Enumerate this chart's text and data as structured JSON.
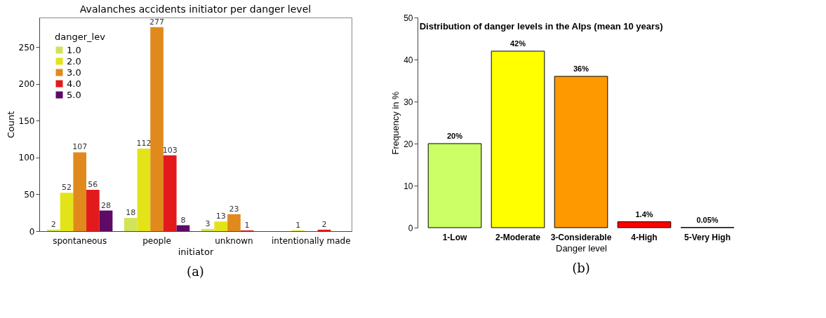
{
  "chart_data": [
    {
      "type": "bar",
      "title": "Avalanches accidents initiator per danger level",
      "xlabel": "initiator",
      "ylabel": "Count",
      "legend_title": "danger_lev",
      "legend": "top left",
      "data_labels": true,
      "grid": false,
      "categories": [
        "spontaneous",
        "people",
        "unknown",
        "intentionally made"
      ],
      "ylim": [
        0,
        290
      ],
      "yticks": [
        0,
        50,
        100,
        150,
        200,
        250
      ],
      "series": [
        {
          "name": "1.0",
          "color": "#d2e35a",
          "values": [
            2,
            18,
            3,
            null
          ]
        },
        {
          "name": "2.0",
          "color": "#e3e31a",
          "values": [
            52,
            112,
            13,
            1
          ]
        },
        {
          "name": "3.0",
          "color": "#e08a1e",
          "values": [
            107,
            277,
            23,
            null
          ]
        },
        {
          "name": "4.0",
          "color": "#e31a1c",
          "values": [
            56,
            103,
            1,
            2
          ]
        },
        {
          "name": "5.0",
          "color": "#5e0a66",
          "values": [
            28,
            8,
            null,
            null
          ]
        }
      ],
      "annotations": [
        "(a)"
      ]
    },
    {
      "type": "bar",
      "title": "Distribution of danger levels in the Alps (mean 10 years)",
      "xlabel": "Danger level",
      "ylabel": "Frequency in %",
      "grid": false,
      "categories": [
        "1-Low",
        "2-Moderate",
        "3-Considerable",
        "4-High",
        "5-Very High"
      ],
      "values": [
        20,
        42,
        36,
        1.4,
        0.05
      ],
      "value_labels": [
        "20%",
        "42%",
        "36%",
        "1.4%",
        "0.05%"
      ],
      "colors": [
        "#ccff66",
        "#ffff00",
        "#ff9900",
        "#ff0000",
        "#990000"
      ],
      "ylim": [
        0,
        50
      ],
      "yticks": [
        0,
        10,
        20,
        30,
        40,
        50
      ],
      "annotations": [
        "(b)"
      ]
    }
  ]
}
